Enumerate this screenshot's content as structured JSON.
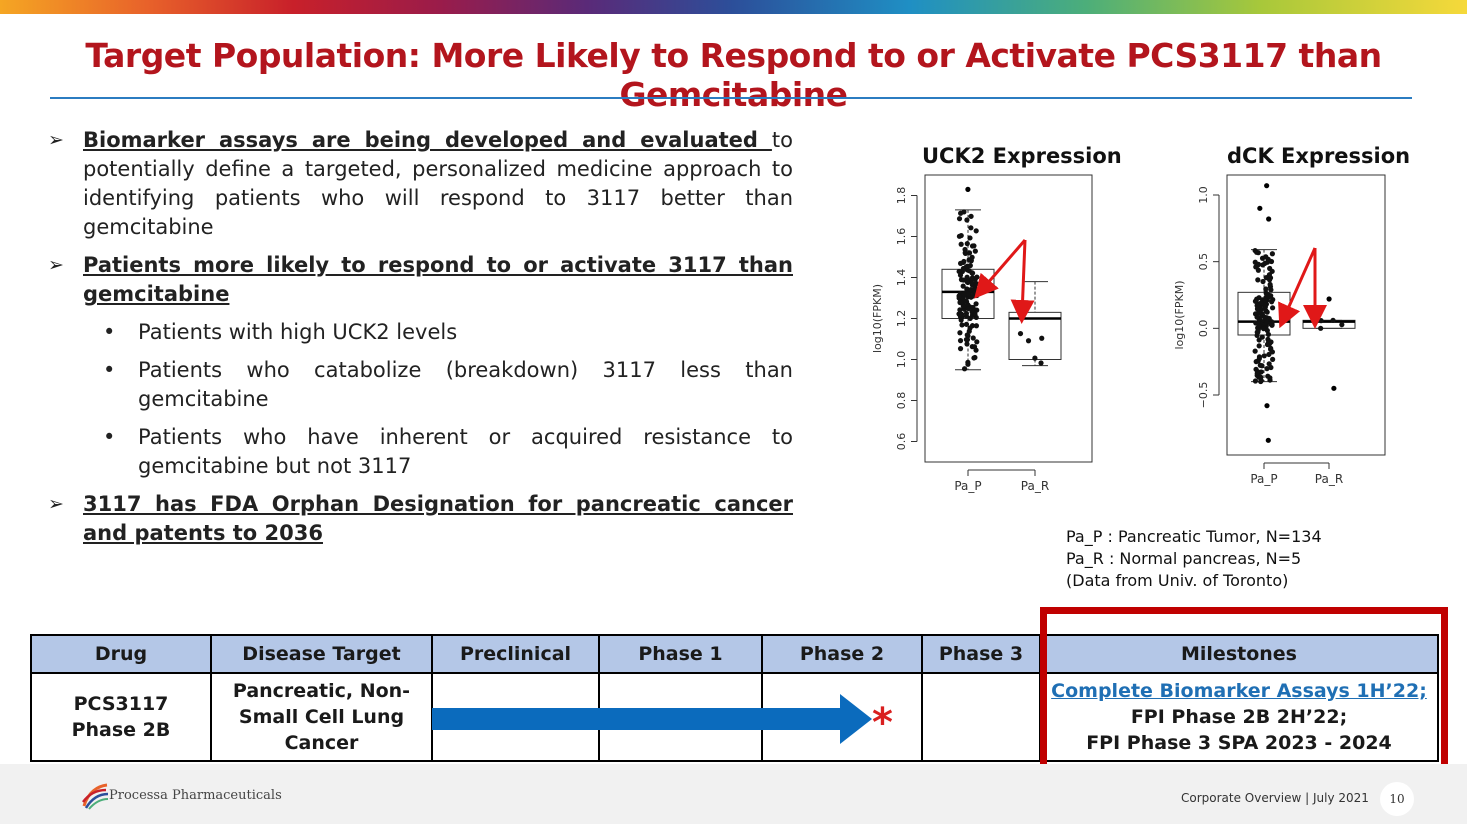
{
  "slide": {
    "title": "Target Population: More Likely to Respond to or Activate PCS3117 than Gemcitabine"
  },
  "bullets": {
    "b1_underlined": "Biomarker assays are being developed and evaluated ",
    "b1_rest": "to potentially define a targeted, personalized medicine approach to identifying patients who will respond to 3117 better than gemcitabine",
    "b2": "Patients more likely to respond to or activate 3117 than gemcitabine",
    "sub": [
      "Patients with high UCK2 levels",
      "Patients who catabolize (breakdown) 3117 less than gemcitabine",
      "Patients who have inherent or acquired resistance to gemcitabine but not 3117"
    ],
    "b3": "3117 has FDA Orphan Designation for pancreatic cancer and patents to 2036"
  },
  "chart_data": [
    {
      "type": "box",
      "title": "UCK2 Expression",
      "ylabel": "log10(FPKM)",
      "categories": [
        "Pa_P",
        "Pa_R"
      ],
      "yticks": [
        0.6,
        0.8,
        1.0,
        1.2,
        1.4,
        1.6,
        1.8
      ],
      "ylim": [
        0.5,
        1.9
      ],
      "boxes": [
        {
          "name": "Pa_P",
          "min": 0.95,
          "q1": 1.2,
          "median": 1.33,
          "q3": 1.44,
          "max": 1.73,
          "outliers": [
            1.83
          ]
        },
        {
          "name": "Pa_R",
          "min": 0.97,
          "q1": 1.0,
          "median": 1.2,
          "q3": 1.23,
          "max": 1.38,
          "outliers": []
        }
      ]
    },
    {
      "type": "box",
      "title": "dCK Expression",
      "ylabel": "log10(FPKM)",
      "categories": [
        "Pa_P",
        "Pa_R"
      ],
      "yticks": [
        -0.5,
        0.0,
        0.5,
        1.0
      ],
      "ylim": [
        -0.95,
        1.15
      ],
      "boxes": [
        {
          "name": "Pa_P",
          "min": -0.4,
          "q1": -0.05,
          "median": 0.05,
          "q3": 0.27,
          "max": 0.59,
          "outliers": [
            1.07,
            0.9,
            0.82,
            -0.58,
            -0.84
          ]
        },
        {
          "name": "Pa_R",
          "min": 0.0,
          "q1": 0.0,
          "median": 0.05,
          "q3": 0.06,
          "max": 0.06,
          "outliers": [
            0.22,
            -0.45
          ]
        }
      ]
    }
  ],
  "legend_note": [
    "Pa_P : Pancreatic Tumor, N=134",
    "Pa_R : Normal pancreas, N=5",
    "(Data from Univ. of Toronto)"
  ],
  "table": {
    "headers": [
      "Drug",
      "Disease Target",
      "Preclinical",
      "Phase 1",
      "Phase 2",
      "Phase 3",
      "Milestones"
    ],
    "drug_line1": "PCS3117",
    "drug_line2": "Phase 2B",
    "target_line1": "Pancreatic, Non-",
    "target_line2": "Small Cell Lung",
    "target_line3": "Cancer",
    "asterisk": "*",
    "milestone1": "Complete Biomarker Assays 1H’22;",
    "milestone2": "FPI Phase 2B 2H’22;",
    "milestone3": "FPI Phase 3 SPA 2023 - 2024",
    "progress_phase": "Phase 2",
    "arrow_color": "#0b6bbd"
  },
  "footer": {
    "company": "Processa Pharmaceuticals",
    "text": "Corporate Overview | July 2021",
    "page": "10"
  },
  "colors": {
    "title": "#b3151d",
    "accent_blue": "#2b7cc1",
    "highlight_red": "#c00000",
    "header_fill": "#b4c7e7"
  }
}
